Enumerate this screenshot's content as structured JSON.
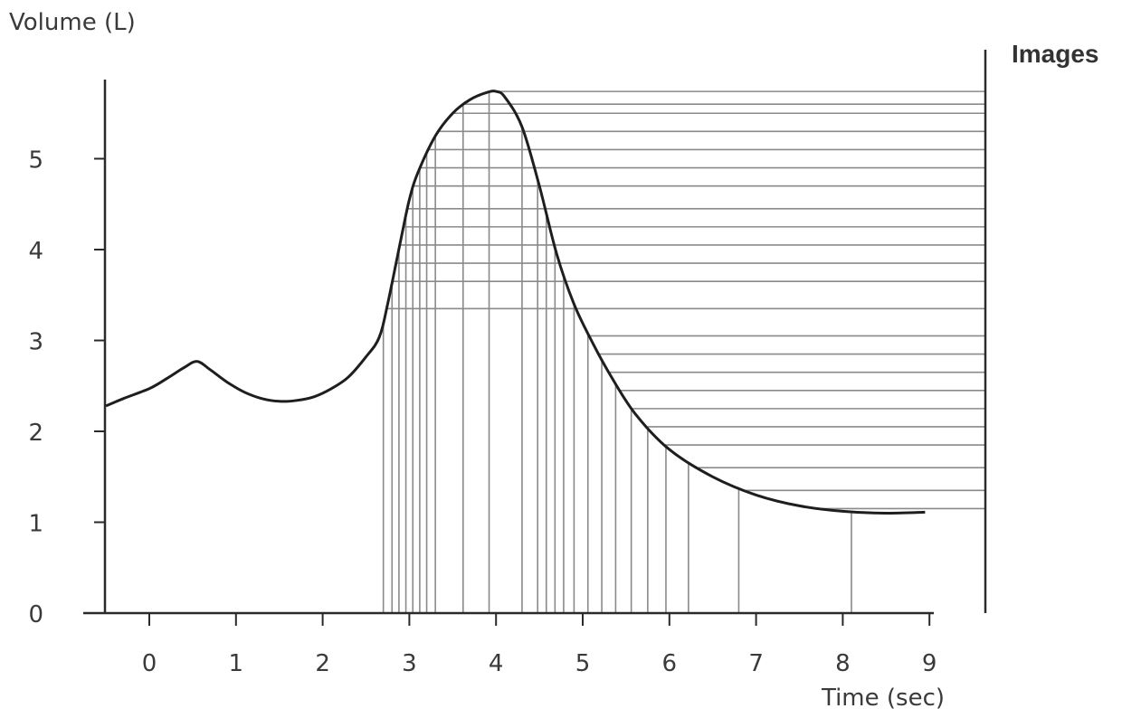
{
  "chart_data": {
    "type": "line",
    "ylabel": "Volume (L)",
    "xlabel": "Time (sec)",
    "side_label": "Images",
    "x_ticks": [
      0,
      1,
      2,
      3,
      4,
      5,
      6,
      7,
      8,
      9
    ],
    "y_ticks": [
      0,
      1,
      2,
      3,
      4,
      5
    ],
    "xlim": [
      -0.5,
      9
    ],
    "ylim": [
      0,
      5.8
    ],
    "grid": false,
    "series": [
      {
        "x": [
          -0.5,
          -0.3,
          0.0,
          0.2,
          0.4,
          0.55,
          0.7,
          0.9,
          1.1,
          1.3,
          1.5,
          1.7,
          1.9,
          2.1,
          2.3,
          2.5,
          2.65,
          2.75,
          2.9,
          3.0,
          3.1,
          3.3,
          3.5,
          3.7,
          3.9,
          4.0,
          4.1,
          4.3,
          4.5,
          4.7,
          4.9,
          5.1,
          5.3,
          5.6,
          6.0,
          6.5,
          7.0,
          7.5,
          8.0,
          8.5,
          8.95
        ],
        "y": [
          2.28,
          2.36,
          2.47,
          2.58,
          2.7,
          2.77,
          2.68,
          2.54,
          2.43,
          2.36,
          2.33,
          2.34,
          2.38,
          2.47,
          2.6,
          2.82,
          3.03,
          3.4,
          4.1,
          4.55,
          4.85,
          5.25,
          5.5,
          5.65,
          5.73,
          5.74,
          5.68,
          5.35,
          4.7,
          3.95,
          3.4,
          3.0,
          2.65,
          2.2,
          1.8,
          1.5,
          1.3,
          1.18,
          1.12,
          1.1,
          1.11
        ]
      }
    ],
    "image_sample_times": [
      2.7,
      2.8,
      2.88,
      2.96,
      3.04,
      3.12,
      3.2,
      3.3,
      3.62,
      3.92,
      4.3,
      4.48,
      4.58,
      4.68,
      4.78,
      4.9,
      5.06,
      5.22,
      5.38,
      5.56,
      5.75,
      5.96,
      6.22,
      6.8,
      8.1
    ],
    "image_sample_levels": [
      1.15,
      1.35,
      1.6,
      1.85,
      2.05,
      2.25,
      2.45,
      2.65,
      2.85,
      3.05,
      3.35,
      3.65,
      3.85,
      4.05,
      4.25,
      4.45,
      4.7,
      4.9,
      5.1,
      5.3,
      5.5,
      5.6,
      5.74
    ]
  }
}
